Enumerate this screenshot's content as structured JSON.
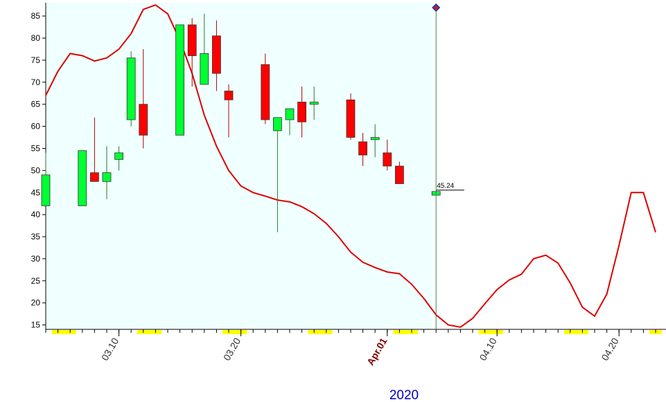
{
  "chart_data": {
    "type": "candlestick",
    "year_label": "2020",
    "ylim": [
      14,
      88
    ],
    "y_ticks": [
      15,
      20,
      25,
      30,
      35,
      40,
      45,
      50,
      55,
      60,
      65,
      70,
      75,
      80,
      85
    ],
    "x_ticks": [
      {
        "label": "03.10",
        "day": 10
      },
      {
        "label": "03.20",
        "day": 20
      },
      {
        "label": "Apr.01",
        "day": 32,
        "highlight": true
      },
      {
        "label": "04.10",
        "day": 41
      },
      {
        "label": "04.20",
        "day": 51
      }
    ],
    "colors": {
      "up": "#00ff33",
      "down": "#ff0000",
      "line": "#dd0000",
      "plot_bg": "#f0ffff",
      "weekend": "#ffff00",
      "cursor": "#2e8b57"
    },
    "candles": [
      {
        "day": 4,
        "open": 42.0,
        "high": 54.0,
        "low": 42.0,
        "close": 49.0
      },
      {
        "day": 7,
        "open": 42.0,
        "high": 54.5,
        "low": 42.0,
        "close": 54.5
      },
      {
        "day": 8,
        "open": 49.5,
        "high": 62.0,
        "low": 47.5,
        "close": 47.5
      },
      {
        "day": 9,
        "open": 47.5,
        "high": 55.5,
        "low": 43.5,
        "close": 49.5
      },
      {
        "day": 10,
        "open": 52.5,
        "high": 55.5,
        "low": 50.0,
        "close": 54.0
      },
      {
        "day": 11,
        "open": 61.5,
        "high": 77.0,
        "low": 60.0,
        "close": 75.5
      },
      {
        "day": 12,
        "open": 65.0,
        "high": 77.5,
        "low": 55.0,
        "close": 58.0
      },
      {
        "day": 15,
        "open": 58.0,
        "high": 83.0,
        "low": 58.0,
        "close": 83.0
      },
      {
        "day": 16,
        "open": 83.0,
        "high": 84.5,
        "low": 69.0,
        "close": 76.0
      },
      {
        "day": 17,
        "open": 69.5,
        "high": 85.5,
        "low": 69.5,
        "close": 76.5
      },
      {
        "day": 18,
        "open": 80.5,
        "high": 84.0,
        "low": 68.0,
        "close": 72.0
      },
      {
        "day": 19,
        "open": 68.0,
        "high": 69.5,
        "low": 57.5,
        "close": 66.0
      },
      {
        "day": 22,
        "open": 74.0,
        "high": 76.5,
        "low": 60.5,
        "close": 61.5
      },
      {
        "day": 23,
        "open": 59.0,
        "high": 62.0,
        "low": 36.0,
        "close": 62.0
      },
      {
        "day": 24,
        "open": 61.5,
        "high": 64.0,
        "low": 58.0,
        "close": 64.0
      },
      {
        "day": 25,
        "open": 65.5,
        "high": 69.0,
        "low": 57.5,
        "close": 61.0
      },
      {
        "day": 26,
        "open": 65.0,
        "high": 69.0,
        "low": 61.5,
        "close": 65.5
      },
      {
        "day": 29,
        "open": 66.0,
        "high": 67.5,
        "low": 57.0,
        "close": 57.5
      },
      {
        "day": 30,
        "open": 56.5,
        "high": 58.5,
        "low": 51.0,
        "close": 53.5
      },
      {
        "day": 31,
        "open": 57.0,
        "high": 60.5,
        "low": 53.0,
        "close": 57.5
      },
      {
        "day": 32,
        "open": 54.0,
        "high": 57.0,
        "low": 50.0,
        "close": 51.0
      },
      {
        "day": 33,
        "open": 51.0,
        "high": 52.0,
        "low": 47.0,
        "close": 47.0
      },
      {
        "day": 36,
        "open": 44.4,
        "high": 45.3,
        "low": 44.4,
        "close": 45.24
      }
    ],
    "line": [
      {
        "day": 4,
        "value": 67
      },
      {
        "day": 5,
        "value": 72.5
      },
      {
        "day": 6,
        "value": 76.5
      },
      {
        "day": 7,
        "value": 76
      },
      {
        "day": 8,
        "value": 74.8
      },
      {
        "day": 9,
        "value": 75.5
      },
      {
        "day": 10,
        "value": 77.5
      },
      {
        "day": 11,
        "value": 81
      },
      {
        "day": 12,
        "value": 86.5
      },
      {
        "day": 13,
        "value": 87.5
      },
      {
        "day": 14,
        "value": 85.5
      },
      {
        "day": 15,
        "value": 79.5
      },
      {
        "day": 16,
        "value": 72
      },
      {
        "day": 17,
        "value": 62.5
      },
      {
        "day": 18,
        "value": 55.5
      },
      {
        "day": 19,
        "value": 50
      },
      {
        "day": 20,
        "value": 46.5
      },
      {
        "day": 21,
        "value": 45
      },
      {
        "day": 22,
        "value": 44.2
      },
      {
        "day": 23,
        "value": 43.3
      },
      {
        "day": 24,
        "value": 42.9
      },
      {
        "day": 25,
        "value": 41.8
      },
      {
        "day": 26,
        "value": 40.2
      },
      {
        "day": 27,
        "value": 38
      },
      {
        "day": 28,
        "value": 35
      },
      {
        "day": 29,
        "value": 31.5
      },
      {
        "day": 30,
        "value": 29.2
      },
      {
        "day": 31,
        "value": 28
      },
      {
        "day": 32,
        "value": 27
      },
      {
        "day": 33,
        "value": 26.6
      },
      {
        "day": 34,
        "value": 24.2
      },
      {
        "day": 35,
        "value": 21
      },
      {
        "day": 36,
        "value": 17.3
      },
      {
        "day": 37,
        "value": 15
      },
      {
        "day": 38,
        "value": 14.5
      },
      {
        "day": 39,
        "value": 16.5
      },
      {
        "day": 40,
        "value": 19.8
      },
      {
        "day": 41,
        "value": 23
      },
      {
        "day": 42,
        "value": 25.2
      },
      {
        "day": 43,
        "value": 26.5
      },
      {
        "day": 44,
        "value": 30
      },
      {
        "day": 45,
        "value": 30.8
      },
      {
        "day": 46,
        "value": 29
      },
      {
        "day": 47,
        "value": 24.5
      },
      {
        "day": 48,
        "value": 19
      },
      {
        "day": 49,
        "value": 17
      },
      {
        "day": 50,
        "value": 22
      },
      {
        "day": 51,
        "value": 33
      },
      {
        "day": 52,
        "value": 45
      },
      {
        "day": 53,
        "value": 45
      },
      {
        "day": 54,
        "value": 36
      }
    ],
    "cursor_day": 36,
    "last_price_label": "45.24",
    "weekend_days": [
      5,
      6,
      12,
      13,
      19,
      20,
      26,
      27,
      33,
      34,
      40,
      41,
      47,
      48,
      54
    ]
  }
}
